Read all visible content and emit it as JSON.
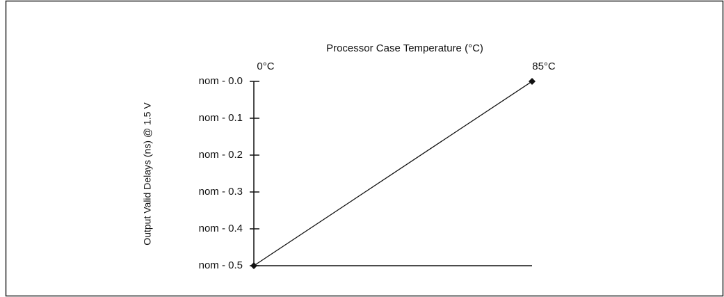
{
  "chart_data": {
    "type": "line",
    "title": "Processor Case Temperature (°C)",
    "y_label": "Output Valid Delays (ns) @ 1.5 V",
    "x": [
      0,
      85
    ],
    "xlim": [
      0,
      85
    ],
    "xticks": [
      {
        "value": 0,
        "label": "0°C"
      },
      {
        "value": 85,
        "label": "85°C"
      }
    ],
    "series": [
      {
        "color": "#111111",
        "values": [
          -0.5,
          0
        ]
      }
    ],
    "ylim": [
      -0.5,
      0
    ],
    "yticks": [
      {
        "value": 0,
        "label": "nom - 0.0"
      },
      {
        "value": -0.1,
        "label": "nom - 0.1"
      },
      {
        "value": -0.2,
        "label": "nom - 0.2"
      },
      {
        "value": -0.3,
        "label": "nom - 0.3"
      },
      {
        "value": -0.4,
        "label": "nom - 0.4"
      },
      {
        "value": -0.5,
        "label": "nom - 0.5"
      }
    ]
  }
}
